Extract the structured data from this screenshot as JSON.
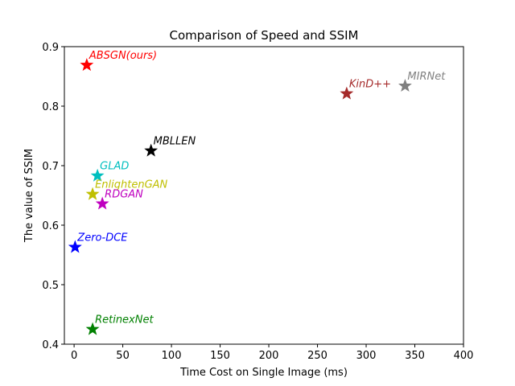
{
  "chart_data": {
    "type": "scatter",
    "title": "Comparison of Speed and SSIM",
    "xlabel": "Time Cost on Single Image (ms)",
    "ylabel": "The value of SSIM",
    "xlim": [
      -10,
      400
    ],
    "ylim": [
      0.4,
      0.9
    ],
    "xticks": [
      0,
      50,
      100,
      150,
      200,
      250,
      300,
      350,
      400
    ],
    "yticks": [
      0.4,
      0.5,
      0.6,
      0.7,
      0.8,
      0.9
    ],
    "xtick_labels": [
      "0",
      "50",
      "100",
      "150",
      "200",
      "250",
      "300",
      "350",
      "400"
    ],
    "ytick_labels": [
      "0.4",
      "0.5",
      "0.6",
      "0.7",
      "0.8",
      "0.9"
    ],
    "marker": "star",
    "grid": false,
    "points": [
      {
        "label": "ABSGN(ours)",
        "x": 13,
        "y": 0.869,
        "color": "#ff0000"
      },
      {
        "label": "MIRNet",
        "x": 340,
        "y": 0.834,
        "color": "#808080"
      },
      {
        "label": "KinD++",
        "x": 280,
        "y": 0.821,
        "color": "#a52a2a"
      },
      {
        "label": "MBLLEN",
        "x": 79,
        "y": 0.725,
        "color": "#000000"
      },
      {
        "label": "GLAD",
        "x": 24,
        "y": 0.683,
        "color": "#00bfbf"
      },
      {
        "label": "EnlightenGAN",
        "x": 19,
        "y": 0.652,
        "color": "#bfbf00"
      },
      {
        "label": "RDGAN",
        "x": 29,
        "y": 0.636,
        "color": "#bf00bf"
      },
      {
        "label": "Zero-DCE",
        "x": 1,
        "y": 0.563,
        "color": "#0000ff"
      },
      {
        "label": "RetinexNet",
        "x": 19,
        "y": 0.425,
        "color": "#008000"
      }
    ]
  }
}
